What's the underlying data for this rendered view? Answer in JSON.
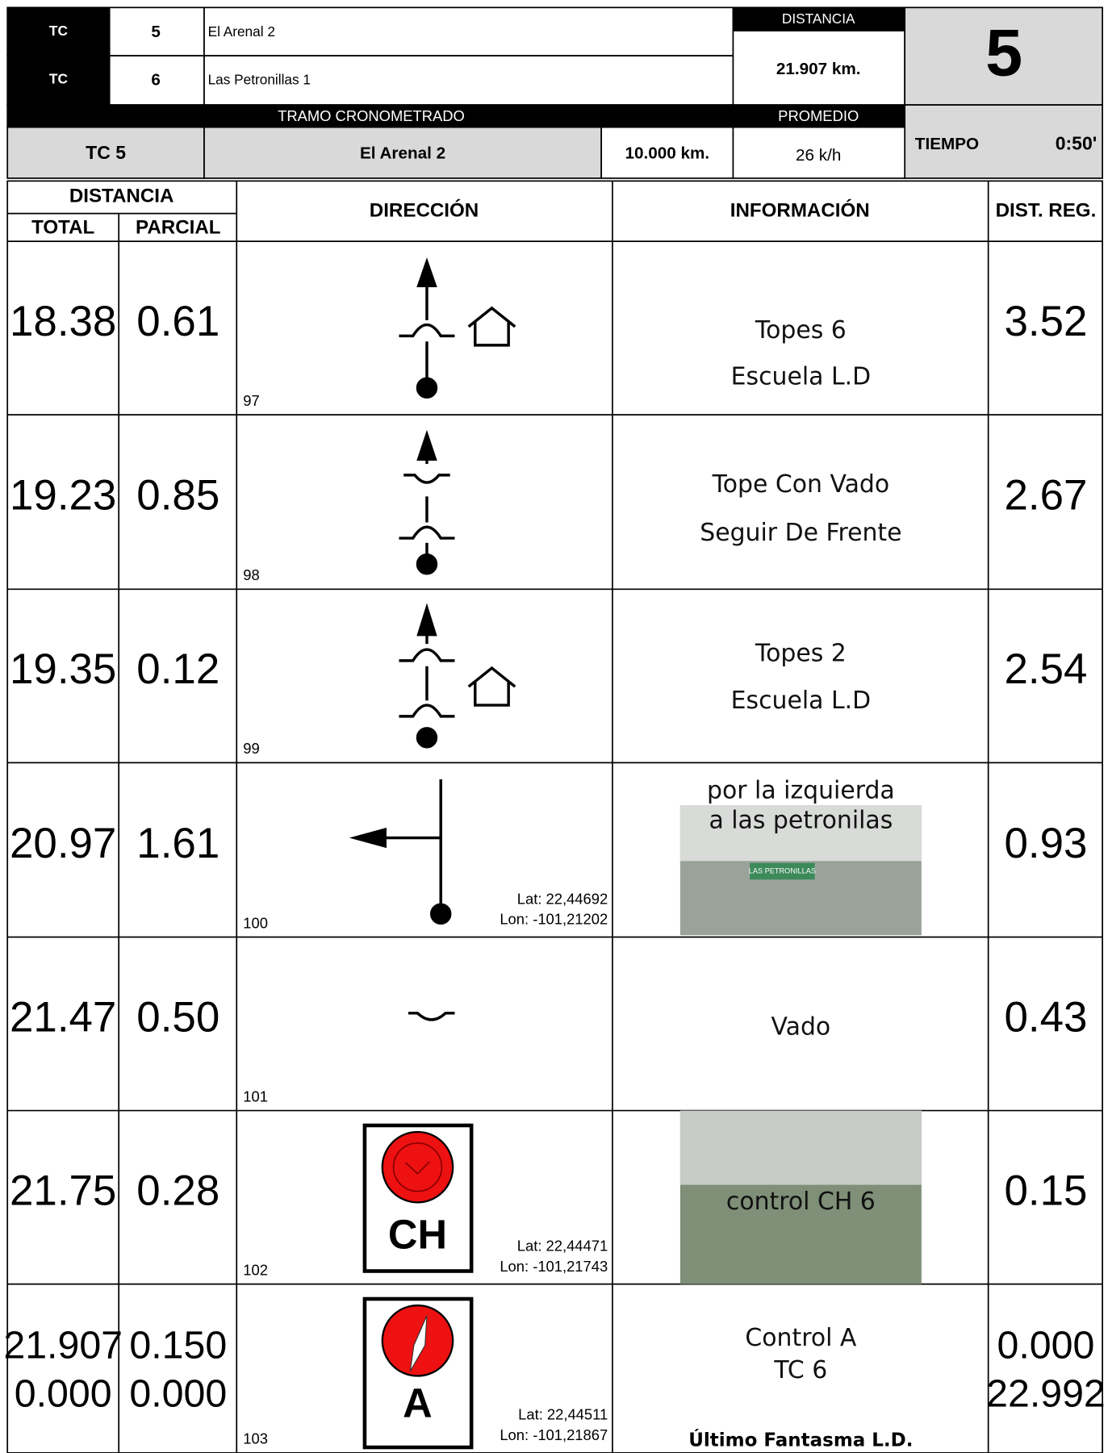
{
  "header": {
    "stages": [
      {
        "label": "TC",
        "number": "5",
        "name": "El Arenal 2"
      },
      {
        "label": "TC",
        "number": "6",
        "name": "Las Petronillas 1"
      }
    ],
    "distance_label": "DISTANCIA",
    "distance": "21.907 km.",
    "big_number": "5",
    "section_label": "TRAMO CRONOMETRADO",
    "average_label": "PROMEDIO",
    "section_id": "TC 5",
    "section_name": "El Arenal 2",
    "section_distance": "10.000 km.",
    "average": "26 k/h",
    "time_label": "TIEMPO",
    "time": "0:50'"
  },
  "table": {
    "columns": {
      "distance": "DISTANCIA",
      "total": "TOTAL",
      "partial": "PARCIAL",
      "direction": "DIRECCIÓN",
      "info": "INFORMACIÓN",
      "reg": "DIST. REG."
    },
    "rows": [
      {
        "total": [
          "18.38"
        ],
        "partial": [
          "0.61"
        ],
        "number": "97",
        "info": [
          "Topes 6",
          "Escuela L.D"
        ],
        "reg": [
          "3.52"
        ]
      },
      {
        "total": [
          "19.23"
        ],
        "partial": [
          "0.85"
        ],
        "number": "98",
        "info": [
          "Tope Con Vado",
          "Seguir De Frente"
        ],
        "reg": [
          "2.67"
        ]
      },
      {
        "total": [
          "19.35"
        ],
        "partial": [
          "0.12"
        ],
        "number": "99",
        "info": [
          "Topes 2",
          "Escuela L.D"
        ],
        "reg": [
          "2.54"
        ]
      },
      {
        "total": [
          "20.97"
        ],
        "partial": [
          "1.61"
        ],
        "number": "100",
        "info": [
          "por la izquierda",
          "a las petronilas"
        ],
        "reg": [
          "0.93"
        ],
        "photo_text": "LAS PETRONILLAS",
        "coords": [
          "Lat: 22,44692",
          "Lon: -101,21202"
        ]
      },
      {
        "total": [
          "21.47"
        ],
        "partial": [
          "0.50"
        ],
        "number": "101",
        "info": [
          "Vado"
        ],
        "reg": [
          "0.43"
        ]
      },
      {
        "total": [
          "21.75"
        ],
        "partial": [
          "0.28"
        ],
        "number": "102",
        "info": [
          "control CH 6"
        ],
        "reg": [
          "0.15"
        ],
        "icon_label": "CH",
        "coords": [
          "Lat: 22,44471",
          "Lon: -101,21743"
        ]
      },
      {
        "total": [
          "21.907",
          "0.000"
        ],
        "partial": [
          "0.150",
          "0.000"
        ],
        "number": "103",
        "info": [
          "Control A",
          "TC  6"
        ],
        "note": "Último Fantasma L.D.",
        "reg": [
          "0.000",
          "22.992"
        ],
        "icon_label": "A",
        "coords": [
          "Lat: 22,44511",
          "Lon: -101,21867"
        ]
      }
    ]
  }
}
